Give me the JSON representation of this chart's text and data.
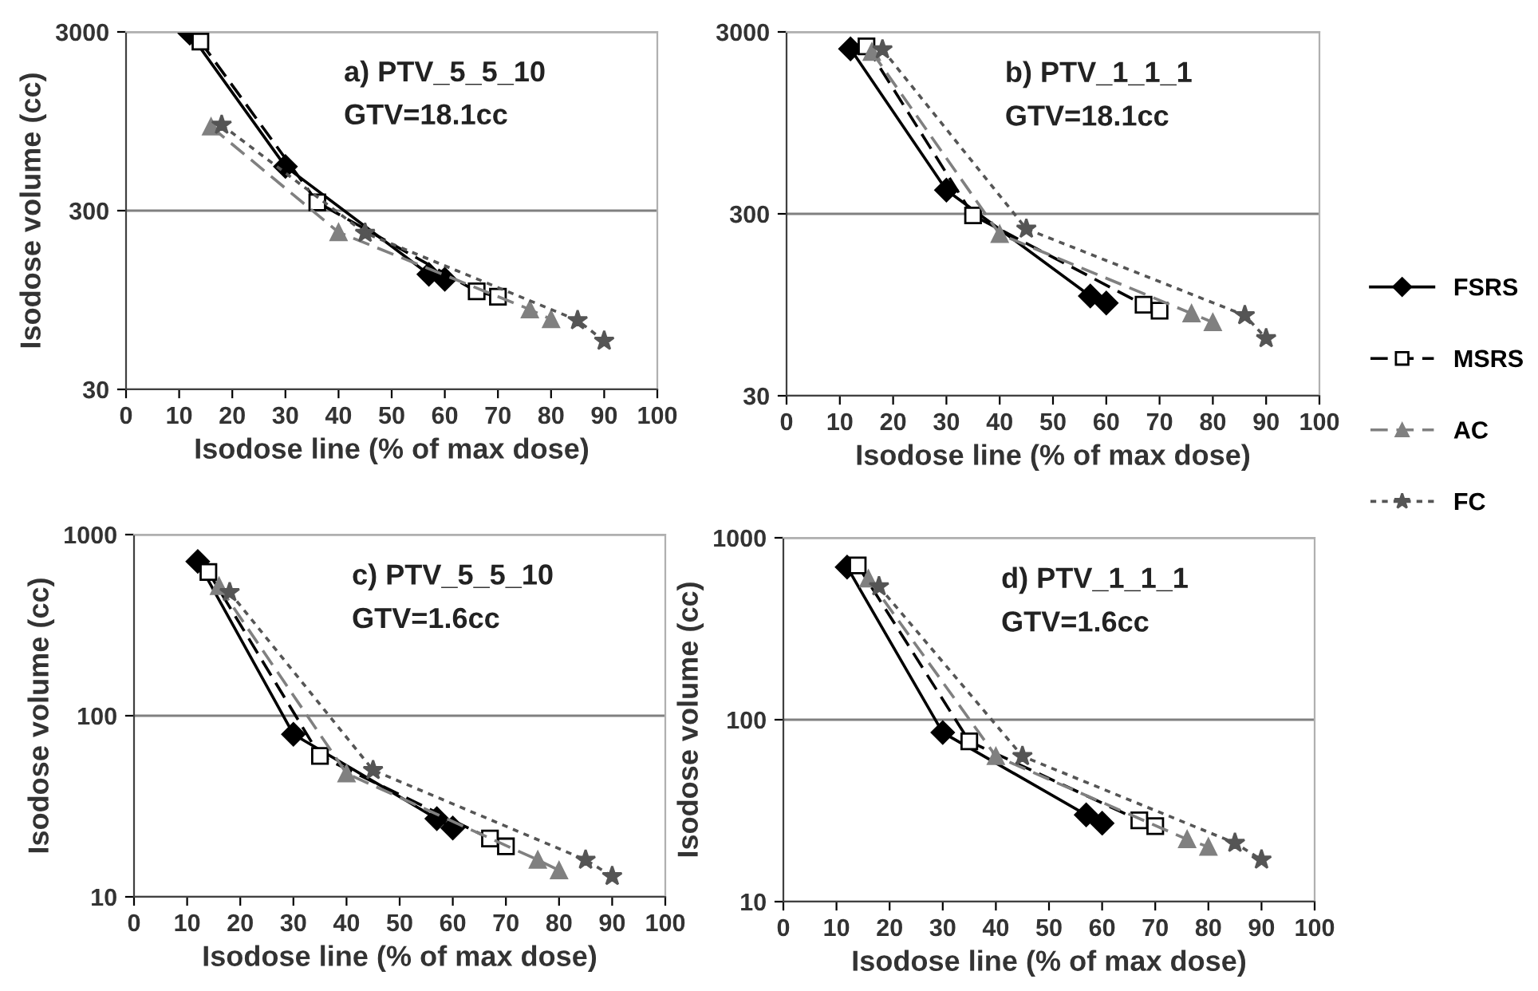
{
  "chart_data": [
    {
      "type": "line",
      "title": "a) PTV_5_5_10",
      "subtitle": "GTV=18.1cc",
      "xlabel": "Isodose line (% of max dose)",
      "ylabel": "Isodose volume (cc)",
      "log": "y",
      "xlim": [
        0,
        100
      ],
      "xticks": [
        0,
        10,
        20,
        30,
        40,
        50,
        60,
        70,
        80,
        90,
        100
      ],
      "ylim": [
        30,
        3000
      ],
      "yticks": [
        30,
        300,
        3000
      ],
      "grid": "y",
      "legend": false,
      "series": [
        {
          "color": "#000000",
          "marker": "diamond",
          "line_style": "solid",
          "x": [
            12,
            30,
            57,
            60
          ],
          "values": [
            2950,
            530,
            132,
            124
          ]
        },
        {
          "color": "#000000",
          "marker": "square",
          "line_style": "dashed",
          "x": [
            14,
            36,
            66,
            70
          ],
          "values": [
            2650,
            334,
            106,
            99
          ]
        },
        {
          "color": "#808080",
          "marker": "triangle",
          "line_style": "dashed",
          "x": [
            16,
            40,
            76,
            80
          ],
          "values": [
            885,
            227,
            84,
            74
          ]
        },
        {
          "color": "#555555",
          "marker": "star",
          "line_style": "dotted",
          "x": [
            18,
            45,
            85,
            90
          ],
          "values": [
            905,
            225,
            73,
            56
          ]
        }
      ]
    },
    {
      "type": "line",
      "title": "b) PTV_1_1_1",
      "subtitle": "GTV=18.1cc",
      "xlabel": "Isodose line (% of max dose)",
      "log": "y",
      "xlim": [
        0,
        100
      ],
      "xticks": [
        0,
        10,
        20,
        30,
        40,
        50,
        60,
        70,
        80,
        90,
        100
      ],
      "ylim": [
        30,
        3000
      ],
      "yticks": [
        30,
        300,
        3000
      ],
      "grid": "y",
      "legend": "right",
      "series": [
        {
          "name": "FSRS",
          "color": "#000000",
          "marker": "diamond",
          "line_style": "solid",
          "x": [
            12,
            30,
            57,
            60
          ],
          "values": [
            2420,
            405,
            106,
            97
          ]
        },
        {
          "name": "MSRS",
          "color": "#000000",
          "marker": "square",
          "line_style": "dashed",
          "x": [
            15,
            35,
            67,
            70
          ],
          "values": [
            2500,
            294,
            95,
            88
          ]
        },
        {
          "name": "AC",
          "color": "#808080",
          "marker": "triangle",
          "line_style": "dashed",
          "x": [
            16,
            40,
            76,
            80
          ],
          "values": [
            2330,
            232,
            85,
            76
          ]
        },
        {
          "name": "FC",
          "color": "#555555",
          "marker": "star",
          "line_style": "dotted",
          "x": [
            18,
            45,
            86,
            90
          ],
          "values": [
            2400,
            248,
            83,
            62
          ]
        }
      ]
    },
    {
      "type": "line",
      "title": "c) PTV_5_5_10",
      "subtitle": "GTV=1.6cc",
      "xlabel": "Isodose line (% of max dose)",
      "ylabel": "Isodose volume (cc)",
      "log": "y",
      "xlim": [
        0,
        100
      ],
      "xticks": [
        0,
        10,
        20,
        30,
        40,
        50,
        60,
        70,
        80,
        90,
        100
      ],
      "ylim": [
        10,
        1000
      ],
      "yticks": [
        10,
        100,
        1000
      ],
      "grid": "y",
      "legend": false,
      "series": [
        {
          "color": "#000000",
          "marker": "diamond",
          "line_style": "solid",
          "x": [
            12,
            30,
            57,
            60
          ],
          "values": [
            711,
            79,
            27,
            24
          ]
        },
        {
          "color": "#000000",
          "marker": "square",
          "line_style": "dashed",
          "x": [
            14,
            35,
            67,
            70
          ],
          "values": [
            622,
            60,
            21,
            19
          ]
        },
        {
          "color": "#808080",
          "marker": "triangle",
          "line_style": "dashed",
          "x": [
            16,
            40,
            76,
            80
          ],
          "values": [
            519,
            48,
            16,
            14
          ]
        },
        {
          "color": "#555555",
          "marker": "star",
          "line_style": "dotted",
          "x": [
            18,
            45,
            85,
            90
          ],
          "values": [
            480,
            50,
            16,
            13
          ]
        }
      ]
    },
    {
      "type": "line",
      "title": "d) PTV_1_1_1",
      "subtitle": "GTV=1.6cc",
      "xlabel": "Isodose line (% of max dose)",
      "ylabel": "Isodose volume (cc)",
      "log": "y",
      "xlim": [
        0,
        100
      ],
      "xticks": [
        0,
        10,
        20,
        30,
        40,
        50,
        60,
        70,
        80,
        90,
        100
      ],
      "ylim": [
        10,
        1000
      ],
      "yticks": [
        10,
        100,
        1000
      ],
      "grid": "y",
      "legend": false,
      "series": [
        {
          "color": "#000000",
          "marker": "diamond",
          "line_style": "solid",
          "x": [
            12,
            30,
            57,
            60
          ],
          "values": [
            690,
            85,
            30,
            27
          ]
        },
        {
          "color": "#000000",
          "marker": "square",
          "line_style": "dashed",
          "x": [
            14,
            35,
            67,
            70
          ],
          "values": [
            705,
            76,
            28,
            26
          ]
        },
        {
          "color": "#808080",
          "marker": "triangle",
          "line_style": "dashed",
          "x": [
            16,
            40,
            76,
            80
          ],
          "values": [
            596,
            63,
            22,
            20
          ]
        },
        {
          "color": "#555555",
          "marker": "star",
          "line_style": "dotted",
          "x": [
            18,
            45,
            85,
            90
          ],
          "values": [
            540,
            63,
            21,
            17
          ]
        }
      ]
    }
  ]
}
